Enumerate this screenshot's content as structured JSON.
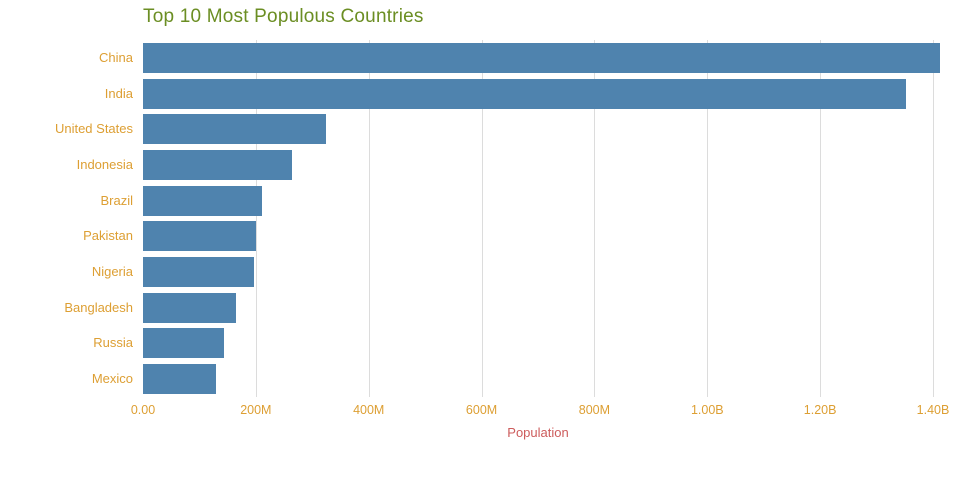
{
  "chart_data": {
    "type": "bar",
    "orientation": "horizontal",
    "title": "Top 10 Most Populous Countries",
    "xlabel": "Population",
    "ylabel": "",
    "categories": [
      "China",
      "India",
      "United States",
      "Indonesia",
      "Brazil",
      "Pakistan",
      "Nigeria",
      "Bangladesh",
      "Russia",
      "Mexico"
    ],
    "values": [
      1412000000,
      1352000000,
      325000000,
      264000000,
      210000000,
      200000000,
      196000000,
      165000000,
      144000000,
      129000000
    ],
    "xlim": [
      0,
      1400000000
    ],
    "x_ticks": [
      {
        "value": 0,
        "label": "0.00"
      },
      {
        "value": 200000000,
        "label": "200M"
      },
      {
        "value": 400000000,
        "label": "400M"
      },
      {
        "value": 600000000,
        "label": "600M"
      },
      {
        "value": 800000000,
        "label": "800M"
      },
      {
        "value": 1000000000,
        "label": "1.00B"
      },
      {
        "value": 1200000000,
        "label": "1.20B"
      },
      {
        "value": 1400000000,
        "label": "1.40B"
      }
    ],
    "grid": "vertical",
    "legend": "none"
  },
  "colors": {
    "bar": "#4f83ae",
    "title": "#6b8e23",
    "tick_labels": "#dd9f33",
    "category_labels": "#dd9f33",
    "axis_title": "#cd5c5c",
    "gridline": "#dcdcdc",
    "background": "#ffffff"
  }
}
